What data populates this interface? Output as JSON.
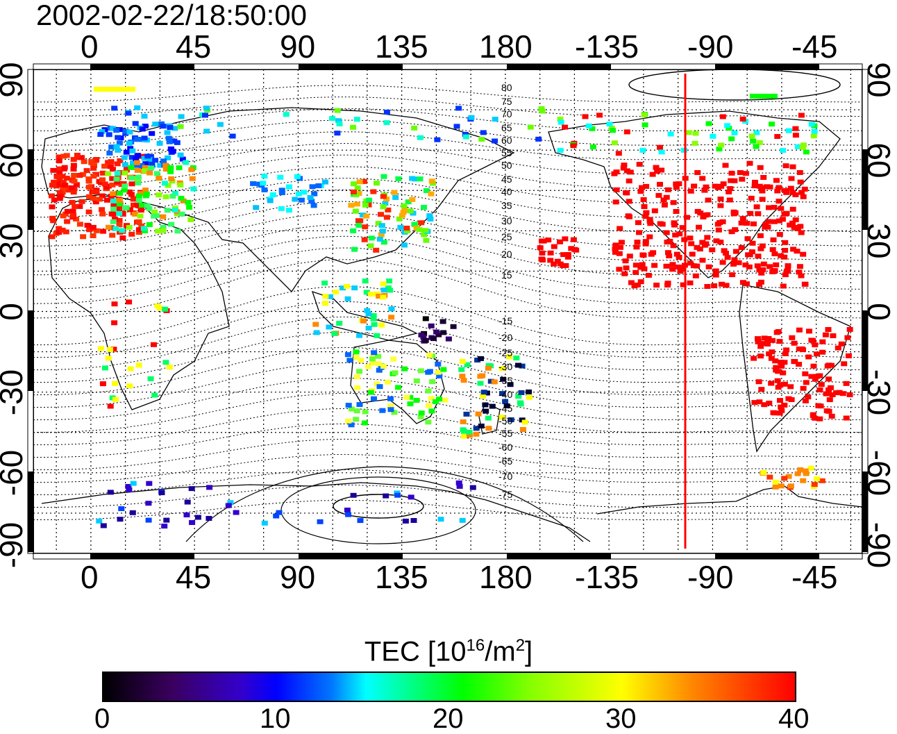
{
  "timestamp": "2002-02-22/18:50:00",
  "map": {
    "lon_ticks_top": [
      "0",
      "45",
      "90",
      "135",
      "180",
      "-135",
      "-90",
      "-45"
    ],
    "lon_ticks_bottom": [
      "0",
      "45",
      "90",
      "135",
      "180",
      "-135",
      "-90",
      "-45"
    ],
    "lat_ticks_left": [
      "90",
      "60",
      "30",
      "0",
      "-30",
      "-60",
      "-90"
    ],
    "lat_ticks_right": [
      "90",
      "60",
      "30",
      "0",
      "-30",
      "-60",
      "-90"
    ],
    "contour_labels_north": [
      "80",
      "75",
      "70",
      "65",
      "60",
      "55",
      "50",
      "45",
      "40",
      "35",
      "30",
      "25",
      "20",
      "15"
    ],
    "contour_labels_south": [
      "-15",
      "-20",
      "-25",
      "-30",
      "-35",
      "-40",
      "-45",
      "-50",
      "-55",
      "-60",
      "-65",
      "-70",
      "-75"
    ],
    "marker_line_color": "#ff0000",
    "marker_longitude": -105
  },
  "colorbar": {
    "title_main": "TEC  [10",
    "title_sup1": "16",
    "title_mid": "/m",
    "title_sup2": "2",
    "title_end": "]",
    "ticks": [
      "0",
      "10",
      "20",
      "30",
      "40"
    ],
    "range": [
      0,
      40
    ],
    "colors": [
      "#000000",
      "#0000ff",
      "#00ffff",
      "#00ff00",
      "#ffff00",
      "#ff0000"
    ]
  }
}
